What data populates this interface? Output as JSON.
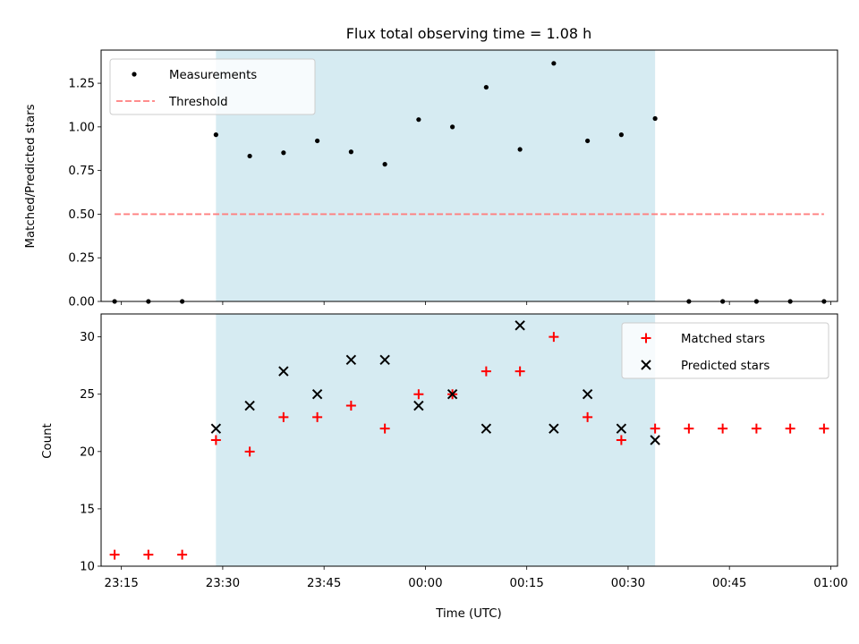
{
  "chart_data": [
    {
      "type": "scatter",
      "title": "Flux total observing time = 1.08 h",
      "xlabel": "",
      "ylabel": "Matched/Predicted stars",
      "ylim": [
        0,
        1.44
      ],
      "xlim": [
        "23:12",
        "01:01"
      ],
      "yticks": [
        "0.00",
        "0.25",
        "0.50",
        "0.75",
        "1.00",
        "1.25"
      ],
      "grid": false,
      "legend_position": "top-left",
      "highlight_span": {
        "start": "23:29",
        "end": "00:34",
        "color": "#add8e6"
      },
      "series": [
        {
          "name": "Measurements",
          "marker": "dot",
          "color": "#000000",
          "points": [
            {
              "x": "23:14",
              "y": 0.0
            },
            {
              "x": "23:19",
              "y": 0.0
            },
            {
              "x": "23:24",
              "y": 0.0
            },
            {
              "x": "23:29",
              "y": 0.955
            },
            {
              "x": "23:34",
              "y": 0.833
            },
            {
              "x": "23:39",
              "y": 0.852
            },
            {
              "x": "23:44",
              "y": 0.92
            },
            {
              "x": "23:49",
              "y": 0.857
            },
            {
              "x": "23:54",
              "y": 0.786
            },
            {
              "x": "23:59",
              "y": 1.042
            },
            {
              "x": "00:04",
              "y": 1.0
            },
            {
              "x": "00:09",
              "y": 1.227
            },
            {
              "x": "00:14",
              "y": 0.871
            },
            {
              "x": "00:19",
              "y": 1.364
            },
            {
              "x": "00:24",
              "y": 0.92
            },
            {
              "x": "00:29",
              "y": 0.955
            },
            {
              "x": "00:34",
              "y": 1.048
            },
            {
              "x": "00:39",
              "y": 0.0
            },
            {
              "x": "00:44",
              "y": 0.0
            },
            {
              "x": "00:49",
              "y": 0.0
            },
            {
              "x": "00:54",
              "y": 0.0
            },
            {
              "x": "00:59",
              "y": 0.0
            }
          ]
        },
        {
          "name": "Threshold",
          "marker": "dashed-line",
          "color": "#ff7f7f",
          "points": [
            {
              "x": "23:14",
              "y": 0.5
            },
            {
              "x": "00:59",
              "y": 0.5
            }
          ]
        }
      ]
    },
    {
      "type": "scatter",
      "title": "",
      "xlabel": "Time (UTC)",
      "ylabel": "Count",
      "ylim": [
        10,
        32
      ],
      "xlim": [
        "23:12",
        "01:01"
      ],
      "yticks": [
        "10",
        "15",
        "20",
        "25",
        "30"
      ],
      "xticks": [
        "23:15",
        "23:30",
        "23:45",
        "00:00",
        "00:15",
        "00:30",
        "00:45",
        "01:00"
      ],
      "grid": false,
      "legend_position": "top-right",
      "highlight_span": {
        "start": "23:29",
        "end": "00:34",
        "color": "#add8e6"
      },
      "series": [
        {
          "name": "Matched stars",
          "marker": "plus",
          "color": "#ff0000",
          "points": [
            {
              "x": "23:14",
              "y": 11
            },
            {
              "x": "23:19",
              "y": 11
            },
            {
              "x": "23:24",
              "y": 11
            },
            {
              "x": "23:29",
              "y": 21
            },
            {
              "x": "23:34",
              "y": 20
            },
            {
              "x": "23:39",
              "y": 23
            },
            {
              "x": "23:44",
              "y": 23
            },
            {
              "x": "23:49",
              "y": 24
            },
            {
              "x": "23:54",
              "y": 22
            },
            {
              "x": "23:59",
              "y": 25
            },
            {
              "x": "00:04",
              "y": 25
            },
            {
              "x": "00:09",
              "y": 27
            },
            {
              "x": "00:14",
              "y": 27
            },
            {
              "x": "00:19",
              "y": 30
            },
            {
              "x": "00:24",
              "y": 23
            },
            {
              "x": "00:29",
              "y": 21
            },
            {
              "x": "00:34",
              "y": 22
            },
            {
              "x": "00:39",
              "y": 22
            },
            {
              "x": "00:44",
              "y": 22
            },
            {
              "x": "00:49",
              "y": 22
            },
            {
              "x": "00:54",
              "y": 22
            },
            {
              "x": "00:59",
              "y": 22
            }
          ]
        },
        {
          "name": "Predicted stars",
          "marker": "x",
          "color": "#000000",
          "points": [
            {
              "x": "23:29",
              "y": 22
            },
            {
              "x": "23:34",
              "y": 24
            },
            {
              "x": "23:39",
              "y": 27
            },
            {
              "x": "23:44",
              "y": 25
            },
            {
              "x": "23:49",
              "y": 28
            },
            {
              "x": "23:54",
              "y": 28
            },
            {
              "x": "23:59",
              "y": 24
            },
            {
              "x": "00:04",
              "y": 25
            },
            {
              "x": "00:09",
              "y": 22
            },
            {
              "x": "00:14",
              "y": 31
            },
            {
              "x": "00:19",
              "y": 22
            },
            {
              "x": "00:24",
              "y": 25
            },
            {
              "x": "00:29",
              "y": 22
            },
            {
              "x": "00:34",
              "y": 21
            }
          ]
        }
      ]
    }
  ]
}
